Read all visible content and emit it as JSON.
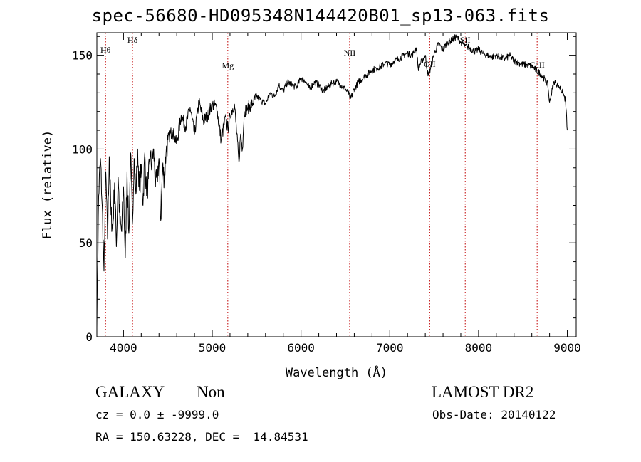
{
  "chart_data": {
    "type": "line",
    "title": "spec-56680-HD095348N144420B01_sp13-063.fits",
    "xlabel": "Wavelength (Å)",
    "ylabel": "Flux (relative)",
    "xlim": [
      3700,
      9100
    ],
    "ylim": [
      0,
      162
    ],
    "xticks": [
      4000,
      5000,
      6000,
      7000,
      8000,
      9000
    ],
    "yticks": [
      0,
      50,
      100,
      150
    ],
    "grid": false,
    "series": [
      {
        "values_x": [
          3700,
          3720,
          3740,
          3760,
          3780,
          3800,
          3820,
          3840,
          3860,
          3880,
          3900,
          3920,
          3940,
          3960,
          3980,
          4000,
          4020,
          4040,
          4060,
          4080,
          4100,
          4120,
          4140,
          4160,
          4180,
          4200,
          4220,
          4240,
          4260,
          4280,
          4300,
          4320,
          4340,
          4360,
          4380,
          4400,
          4420,
          4440,
          4460,
          4480,
          4500,
          4550,
          4600,
          4650,
          4700,
          4750,
          4800,
          4850,
          4900,
          4950,
          5000,
          5050,
          5100,
          5150,
          5180,
          5200,
          5250,
          5300,
          5320,
          5340,
          5360,
          5400,
          5450,
          5500,
          5550,
          5600,
          5650,
          5700,
          5750,
          5800,
          5850,
          5900,
          5950,
          6000,
          6050,
          6100,
          6150,
          6200,
          6250,
          6300,
          6350,
          6400,
          6450,
          6500,
          6530,
          6560,
          6600,
          6650,
          6700,
          6750,
          6800,
          6850,
          6900,
          6950,
          7000,
          7050,
          7100,
          7150,
          7200,
          7250,
          7300,
          7320,
          7350,
          7400,
          7430,
          7460,
          7500,
          7550,
          7600,
          7650,
          7700,
          7750,
          7800,
          7850,
          7900,
          7950,
          8000,
          8050,
          8100,
          8150,
          8200,
          8250,
          8300,
          8350,
          8400,
          8450,
          8500,
          8550,
          8600,
          8650,
          8700,
          8750,
          8780,
          8800,
          8850,
          8900,
          8950,
          8980,
          9000
        ],
        "values_y": [
          5,
          75,
          95,
          70,
          35,
          88,
          52,
          96,
          65,
          58,
          82,
          48,
          85,
          60,
          56,
          80,
          42,
          88,
          55,
          98,
          60,
          95,
          76,
          100,
          78,
          92,
          70,
          98,
          75,
          84,
          95,
          92,
          100,
          80,
          85,
          95,
          62,
          90,
          85,
          98,
          105,
          110,
          103,
          118,
          112,
          122,
          108,
          125,
          115,
          118,
          124,
          122,
          105,
          117,
          110,
          118,
          124,
          93,
          108,
          100,
          120,
          122,
          124,
          128,
          126,
          124,
          130,
          128,
          134,
          131,
          136,
          134,
          133,
          138,
          136,
          132,
          136,
          134,
          131,
          133,
          135,
          136,
          134,
          132,
          130,
          127,
          132,
          136,
          138,
          140,
          142,
          143,
          144,
          146,
          145,
          147,
          148,
          150,
          151,
          150,
          154,
          143,
          146,
          150,
          139,
          143,
          151,
          156,
          153,
          157,
          158,
          160,
          157,
          155,
          154,
          152,
          153,
          151,
          150,
          149,
          150,
          149,
          148,
          150,
          147,
          146,
          145,
          145,
          144,
          142,
          140,
          137,
          134,
          125,
          136,
          134,
          130,
          126,
          110
        ]
      }
    ],
    "annotations": [
      {
        "label": "Hθ",
        "x": 3798
      },
      {
        "label": "Hδ",
        "x": 4102
      },
      {
        "label": "Mg",
        "x": 5175
      },
      {
        "label": "NII",
        "x": 6548
      },
      {
        "label": "OII",
        "x": 7450
      },
      {
        "label": "SII",
        "x": 7850
      },
      {
        "label": "CaII",
        "x": 8660
      }
    ],
    "annotation_color": "#c00000"
  },
  "info": {
    "object_class": "GALAXY",
    "subclass": "Non",
    "survey": "LAMOST DR2",
    "redshift": "cz = 0.0 ± -9999.0",
    "obs_date": "Obs-Date: 20140122",
    "coords": "RA = 150.63228, DEC =  14.84531"
  }
}
